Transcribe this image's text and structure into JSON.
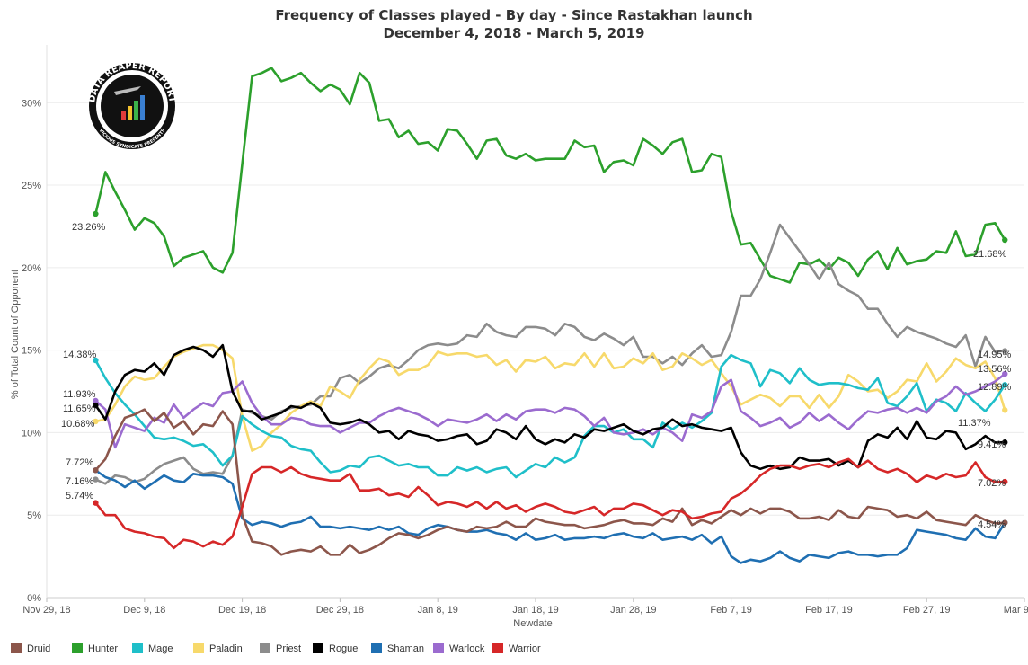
{
  "chart_data": {
    "type": "line",
    "title": "Frequency of Classes played - By day - Since Rastakhan launch",
    "subtitle": "December 4, 2018 - March 5, 2019",
    "xlabel": "Newdate",
    "ylabel": "% of Total Count of Opponent",
    "x_start": "2018-12-04",
    "x_ticks": [
      "Nov 29, 18",
      "Dec 9, 18",
      "Dec 19, 18",
      "Dec 29, 18",
      "Jan 8, 19",
      "Jan 18, 19",
      "Jan 28, 19",
      "Feb 7, 19",
      "Feb 17, 19",
      "Feb 27, 19",
      "Mar 9, 19"
    ],
    "y_ticks": [
      "0%",
      "5%",
      "10%",
      "15%",
      "20%",
      "25%",
      "30%"
    ],
    "ylim": [
      0,
      33.5
    ],
    "grid": "horizontal",
    "legend_position": "bottom",
    "series": [
      {
        "name": "Hunter",
        "color": "#2ca02c",
        "end_label": "21.68%",
        "start_label": "23.26%",
        "values": [
          23.26,
          25.8,
          24.6,
          23.5,
          22.3,
          23.0,
          22.7,
          21.9,
          20.1,
          20.6,
          20.8,
          21.0,
          20.0,
          19.7,
          20.9,
          26.3,
          31.6,
          31.8,
          32.1,
          31.3,
          31.5,
          31.8,
          31.2,
          30.7,
          31.1,
          30.8,
          29.9,
          31.8,
          31.2,
          28.9,
          29.0,
          27.9,
          28.3,
          27.5,
          27.6,
          27.1,
          28.4,
          28.3,
          27.5,
          26.6,
          27.7,
          27.8,
          26.8,
          26.6,
          26.9,
          26.5,
          26.6,
          26.6,
          26.6,
          27.7,
          27.3,
          27.4,
          25.8,
          26.4,
          26.5,
          26.2,
          27.8,
          27.4,
          26.9,
          27.6,
          27.8,
          25.8,
          25.9,
          26.9,
          26.7,
          23.4,
          21.4,
          21.5,
          20.5,
          19.5,
          19.3,
          19.1,
          20.3,
          20.2,
          20.5,
          19.9,
          20.6,
          20.3,
          19.5,
          20.5,
          21.0,
          19.9,
          21.2,
          20.2,
          20.4,
          20.5,
          21.0,
          20.9,
          22.2,
          20.7,
          20.8,
          22.6,
          22.7,
          21.68
        ]
      },
      {
        "name": "Priest",
        "color": "#8c8c8c",
        "end_label": "14.95%",
        "start_label": "7.16%",
        "values": [
          7.16,
          6.9,
          7.4,
          7.3,
          7.0,
          7.2,
          7.7,
          8.1,
          8.3,
          8.5,
          7.8,
          7.5,
          7.6,
          7.5,
          8.6,
          11.4,
          11.2,
          11.0,
          10.8,
          11.3,
          11.5,
          11.6,
          11.7,
          12.2,
          12.2,
          13.3,
          13.5,
          13.0,
          13.4,
          13.9,
          14.1,
          13.9,
          14.4,
          15.0,
          15.3,
          15.4,
          15.3,
          15.4,
          15.9,
          15.8,
          16.6,
          16.1,
          15.9,
          15.8,
          16.4,
          16.4,
          16.3,
          15.9,
          16.6,
          16.4,
          15.8,
          15.6,
          16.0,
          15.7,
          15.3,
          15.8,
          14.6,
          14.6,
          14.2,
          14.6,
          14.1,
          14.8,
          15.3,
          14.6,
          14.7,
          16.1,
          18.3,
          18.3,
          19.3,
          20.9,
          22.6,
          21.8,
          21.0,
          20.2,
          19.3,
          20.3,
          19.0,
          18.6,
          18.3,
          17.5,
          17.5,
          16.6,
          15.8,
          16.4,
          16.1,
          15.9,
          15.7,
          15.4,
          15.2,
          15.9,
          14.0,
          15.8,
          14.9,
          14.95
        ]
      },
      {
        "name": "Paladin",
        "color": "#f7d96b",
        "end_label": "11.37%",
        "start_label": "10.68%",
        "values": [
          10.68,
          10.8,
          11.7,
          12.8,
          13.4,
          13.2,
          13.3,
          14.0,
          14.6,
          14.9,
          15.1,
          15.3,
          15.3,
          15.0,
          14.5,
          11.0,
          8.9,
          9.2,
          10.0,
          10.5,
          11.2,
          11.6,
          11.9,
          11.6,
          12.8,
          12.5,
          12.1,
          13.2,
          13.9,
          14.5,
          14.3,
          13.5,
          13.8,
          13.8,
          14.1,
          14.9,
          14.7,
          14.8,
          14.8,
          14.6,
          14.7,
          14.1,
          14.4,
          13.7,
          14.4,
          14.3,
          14.6,
          13.9,
          14.2,
          14.1,
          14.8,
          14.0,
          14.8,
          13.9,
          14.0,
          14.5,
          14.2,
          14.8,
          13.8,
          14.0,
          14.8,
          14.5,
          14.1,
          14.4,
          13.6,
          12.8,
          11.7,
          12.0,
          12.3,
          12.1,
          11.6,
          12.2,
          12.2,
          11.5,
          12.3,
          11.5,
          12.2,
          13.5,
          13.1,
          12.5,
          12.6,
          12.1,
          12.5,
          13.2,
          13.1,
          14.2,
          13.1,
          13.7,
          14.5,
          14.1,
          13.9,
          14.3,
          13.3,
          11.37
        ]
      },
      {
        "name": "Mage",
        "color": "#1fbfc9",
        "end_label": "12.89%",
        "start_label": "14.38%",
        "values": [
          14.38,
          13.3,
          12.4,
          11.7,
          11.1,
          10.4,
          9.7,
          9.6,
          9.7,
          9.5,
          9.2,
          9.3,
          8.8,
          8.0,
          8.6,
          11.0,
          10.5,
          10.1,
          9.8,
          9.7,
          9.2,
          9.0,
          8.9,
          8.2,
          7.6,
          7.7,
          8.0,
          7.9,
          8.5,
          8.6,
          8.3,
          8.0,
          8.1,
          7.9,
          7.9,
          7.4,
          7.4,
          7.9,
          7.7,
          7.9,
          7.6,
          7.8,
          7.9,
          7.3,
          7.7,
          8.1,
          7.9,
          8.5,
          8.2,
          8.5,
          9.8,
          10.4,
          10.4,
          10.0,
          10.2,
          9.6,
          9.6,
          9.1,
          10.6,
          10.2,
          10.6,
          10.3,
          10.7,
          11.2,
          14.0,
          14.7,
          14.4,
          14.2,
          12.8,
          13.8,
          13.6,
          13.0,
          13.9,
          13.2,
          12.9,
          13.0,
          13.0,
          12.9,
          12.7,
          12.6,
          13.3,
          11.8,
          11.6,
          12.2,
          13.0,
          11.3,
          12.0,
          11.8,
          11.3,
          12.4,
          11.8,
          11.3,
          12.0,
          12.89
        ]
      },
      {
        "name": "Warlock",
        "color": "#9b6bcf",
        "end_label": "13.56%",
        "start_label": "11.93%",
        "values": [
          11.93,
          11.4,
          9.1,
          10.5,
          10.3,
          10.1,
          10.9,
          10.6,
          11.7,
          10.9,
          11.4,
          11.8,
          11.6,
          12.4,
          12.5,
          13.1,
          11.8,
          11.0,
          10.5,
          10.5,
          10.9,
          10.8,
          10.5,
          10.4,
          10.4,
          10.0,
          10.3,
          10.6,
          10.6,
          11.0,
          11.3,
          11.5,
          11.3,
          11.1,
          10.8,
          10.4,
          10.8,
          10.7,
          10.6,
          10.8,
          11.1,
          10.7,
          11.1,
          10.8,
          11.3,
          11.4,
          11.4,
          11.2,
          11.5,
          11.4,
          11.0,
          10.4,
          10.9,
          10.0,
          9.9,
          10.0,
          10.2,
          9.9,
          10.3,
          10.0,
          9.5,
          11.1,
          10.9,
          11.3,
          12.8,
          13.2,
          11.3,
          10.9,
          10.4,
          10.6,
          10.9,
          10.3,
          10.6,
          11.2,
          10.7,
          11.1,
          10.6,
          10.2,
          10.8,
          11.3,
          11.2,
          11.4,
          11.5,
          11.2,
          11.5,
          11.2,
          11.9,
          12.2,
          12.8,
          12.3,
          12.5,
          12.8,
          13.1,
          13.56
        ]
      },
      {
        "name": "Rogue",
        "color": "#000000",
        "end_label": "9.41%",
        "start_label": "11.65%",
        "values": [
          11.65,
          10.8,
          12.5,
          13.5,
          13.8,
          13.7,
          14.2,
          13.5,
          14.7,
          15.0,
          15.2,
          15.0,
          14.6,
          15.3,
          12.5,
          11.3,
          11.3,
          10.8,
          11.0,
          11.2,
          11.6,
          11.5,
          11.8,
          11.5,
          10.6,
          10.5,
          10.6,
          10.8,
          10.5,
          10.0,
          10.1,
          9.6,
          10.1,
          9.9,
          9.8,
          9.5,
          9.6,
          9.8,
          9.9,
          9.3,
          9.5,
          10.2,
          10.0,
          9.6,
          10.4,
          9.6,
          9.3,
          9.6,
          9.4,
          9.9,
          9.7,
          10.2,
          10.1,
          10.3,
          10.5,
          10.1,
          9.9,
          10.2,
          10.3,
          10.8,
          10.4,
          10.5,
          10.3,
          10.2,
          10.1,
          10.3,
          8.8,
          8.0,
          7.8,
          8.0,
          7.8,
          7.9,
          8.5,
          8.3,
          8.3,
          8.4,
          8.0,
          8.3,
          7.9,
          9.5,
          9.9,
          9.7,
          10.3,
          9.6,
          10.7,
          9.7,
          9.6,
          10.1,
          10.0,
          9.0,
          9.3,
          9.8,
          9.4,
          9.41
        ]
      },
      {
        "name": "Shaman",
        "color": "#1f6fb2",
        "end_label": "4.54%",
        "start_label": "7.72%",
        "values": [
          7.72,
          7.3,
          7.1,
          6.7,
          7.1,
          6.6,
          7.0,
          7.4,
          7.1,
          7.0,
          7.5,
          7.4,
          7.4,
          7.3,
          6.9,
          4.8,
          4.4,
          4.6,
          4.5,
          4.3,
          4.5,
          4.6,
          4.9,
          4.3,
          4.3,
          4.2,
          4.3,
          4.2,
          4.1,
          4.3,
          4.1,
          4.3,
          3.9,
          3.8,
          4.2,
          4.4,
          4.3,
          4.1,
          4.0,
          4.0,
          4.1,
          3.9,
          3.8,
          3.5,
          3.9,
          3.5,
          3.6,
          3.8,
          3.5,
          3.6,
          3.6,
          3.7,
          3.6,
          3.8,
          3.9,
          3.7,
          3.6,
          3.9,
          3.5,
          3.6,
          3.7,
          3.5,
          3.8,
          3.3,
          3.7,
          2.5,
          2.1,
          2.3,
          2.2,
          2.4,
          2.8,
          2.4,
          2.2,
          2.6,
          2.5,
          2.4,
          2.7,
          2.8,
          2.6,
          2.6,
          2.5,
          2.6,
          2.6,
          3.0,
          4.1,
          4.0,
          3.9,
          3.8,
          3.6,
          3.5,
          4.2,
          3.7,
          3.6,
          4.54
        ]
      },
      {
        "name": "Druid",
        "color": "#8c564b",
        "end_label": "4.54%",
        "start_label": "7.72%",
        "values": [
          7.72,
          8.4,
          9.8,
          10.9,
          11.1,
          11.4,
          10.7,
          11.2,
          10.3,
          10.7,
          9.9,
          10.5,
          10.4,
          11.3,
          10.5,
          5.0,
          3.4,
          3.3,
          3.1,
          2.6,
          2.8,
          2.9,
          2.8,
          3.1,
          2.6,
          2.6,
          3.2,
          2.7,
          2.9,
          3.2,
          3.6,
          3.9,
          3.8,
          3.6,
          3.8,
          4.1,
          4.3,
          4.1,
          4.0,
          4.3,
          4.2,
          4.3,
          4.6,
          4.3,
          4.3,
          4.8,
          4.6,
          4.5,
          4.4,
          4.4,
          4.2,
          4.3,
          4.4,
          4.6,
          4.7,
          4.5,
          4.5,
          4.4,
          4.8,
          4.6,
          5.4,
          4.4,
          4.7,
          4.5,
          4.9,
          5.3,
          5.0,
          5.4,
          5.1,
          5.4,
          5.4,
          5.2,
          4.8,
          4.8,
          4.9,
          4.7,
          5.3,
          4.9,
          4.8,
          5.5,
          5.4,
          5.3,
          4.9,
          5.0,
          4.8,
          5.2,
          4.7,
          4.6,
          4.5,
          4.4,
          5.0,
          4.7,
          4.5,
          4.54
        ]
      },
      {
        "name": "Warrior",
        "color": "#d62728",
        "end_label": "7.02%",
        "start_label": "5.74%",
        "values": [
          5.74,
          5.0,
          5.0,
          4.2,
          4.0,
          3.9,
          3.7,
          3.6,
          3.0,
          3.5,
          3.4,
          3.1,
          3.4,
          3.2,
          3.7,
          5.5,
          7.5,
          7.9,
          7.9,
          7.6,
          7.9,
          7.5,
          7.3,
          7.2,
          7.1,
          7.1,
          7.5,
          6.5,
          6.5,
          6.6,
          6.2,
          6.3,
          6.1,
          6.7,
          6.2,
          5.6,
          5.8,
          5.7,
          5.5,
          5.8,
          5.4,
          5.8,
          5.4,
          5.6,
          5.2,
          5.5,
          5.7,
          5.5,
          5.2,
          5.1,
          5.3,
          5.5,
          5.0,
          5.4,
          5.4,
          5.7,
          5.6,
          5.3,
          5.0,
          5.3,
          5.2,
          4.8,
          4.9,
          5.1,
          5.2,
          6.0,
          6.3,
          6.8,
          7.4,
          7.8,
          8.0,
          8.0,
          7.8,
          8.0,
          8.1,
          7.9,
          8.2,
          8.4,
          7.9,
          8.3,
          7.8,
          7.6,
          7.8,
          7.5,
          7.0,
          7.4,
          7.2,
          7.5,
          7.3,
          7.4,
          8.2,
          7.3,
          7.0,
          7.02
        ]
      }
    ]
  },
  "legend": [
    {
      "name": "Druid",
      "color": "#8c564b"
    },
    {
      "name": "Hunter",
      "color": "#2ca02c"
    },
    {
      "name": "Mage",
      "color": "#1fbfc9"
    },
    {
      "name": "Paladin",
      "color": "#f7d96b"
    },
    {
      "name": "Priest",
      "color": "#8c8c8c"
    },
    {
      "name": "Rogue",
      "color": "#000000"
    },
    {
      "name": "Shaman",
      "color": "#1f6fb2"
    },
    {
      "name": "Warlock",
      "color": "#9b6bcf"
    },
    {
      "name": "Warrior",
      "color": "#d62728"
    }
  ],
  "logo": {
    "text": "DATA REAPER REPORT",
    "subtext": "VICIOUS SYNDICATE PRESENTS"
  }
}
